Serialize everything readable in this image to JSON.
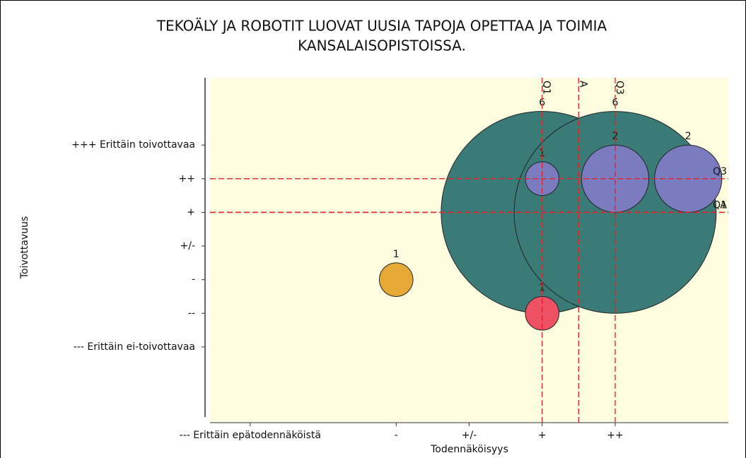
{
  "chart_data": {
    "type": "bubble",
    "title": [
      "TEKOÄLY JA ROBOTIT LUOVAT UUSIA TAPOJA OPETTAA JA TOIMIA",
      "KANSALAISOPISTOISSA."
    ],
    "xlabel": "Todennäköisyys",
    "ylabel": "Toivottavuus",
    "xlim": [
      -3.55,
      3.55
    ],
    "ylim": [
      -5.25,
      5
    ],
    "xticks": [
      {
        "value": -3,
        "label": "--- Erittäin epätodennäköistä"
      },
      {
        "value": -1,
        "label": "-"
      },
      {
        "value": 0,
        "label": "+/-"
      },
      {
        "value": 1,
        "label": "+"
      },
      {
        "value": 2,
        "label": "++"
      }
    ],
    "yticks": [
      {
        "value": 3,
        "label": "+++ Erittäin toivottavaa"
      },
      {
        "value": 2,
        "label": "++"
      },
      {
        "value": 1,
        "label": "+"
      },
      {
        "value": 0,
        "label": "+/-"
      },
      {
        "value": -1,
        "label": "-"
      },
      {
        "value": -2,
        "label": "--"
      },
      {
        "value": -3,
        "label": "--- Erittäin ei-toivottavaa"
      }
    ],
    "points": [
      {
        "x": 1,
        "y": 1,
        "size": 6,
        "color": "#3a7b78"
      },
      {
        "x": 2,
        "y": 1,
        "size": 6,
        "color": "#3a7b78"
      },
      {
        "x": 1,
        "y": 2,
        "size": 1,
        "color": "#7b7bc0"
      },
      {
        "x": 2,
        "y": 2,
        "size": 2,
        "color": "#7b7bc0"
      },
      {
        "x": 3,
        "y": 2,
        "size": 2,
        "color": "#7b7bc0"
      },
      {
        "x": -1,
        "y": -1,
        "size": 1,
        "color": "#e6a936"
      },
      {
        "x": 1,
        "y": -2,
        "size": 1,
        "color": "#ee5064"
      }
    ],
    "ref_lines": [
      {
        "axis": "x",
        "value": 1,
        "label": "Q1"
      },
      {
        "axis": "x",
        "value": 1.5,
        "label": "A"
      },
      {
        "axis": "x",
        "value": 2,
        "label": "Q3"
      },
      {
        "axis": "y",
        "value": 2,
        "label": "Q3"
      },
      {
        "axis": "y",
        "value": 1,
        "label": "Q1"
      },
      {
        "axis": "y",
        "value": 1,
        "label": "A"
      }
    ],
    "ref_color": "#e82020",
    "background": "#fffde0"
  }
}
